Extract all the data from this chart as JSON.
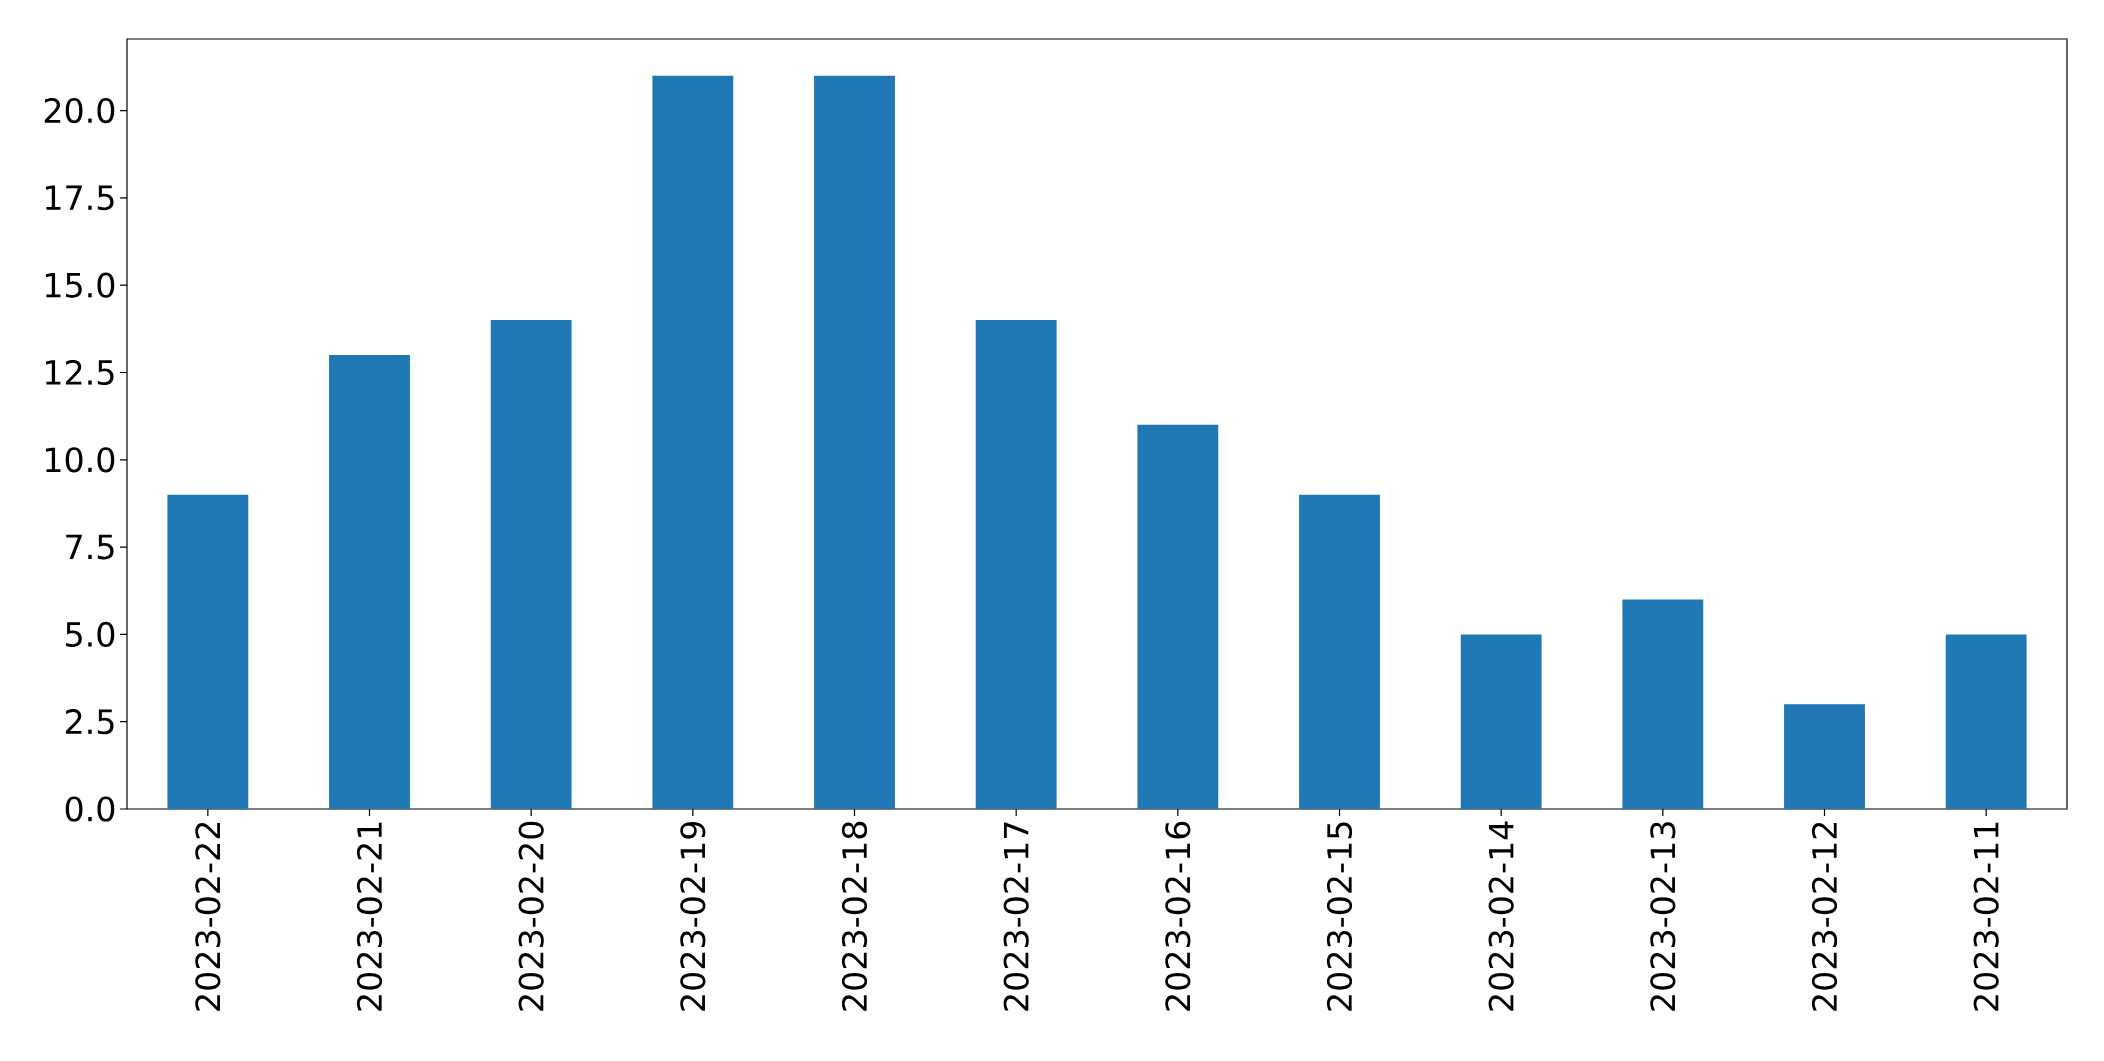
{
  "chart_data": {
    "type": "bar",
    "categories": [
      "2023-02-22",
      "2023-02-21",
      "2023-02-20",
      "2023-02-19",
      "2023-02-18",
      "2023-02-17",
      "2023-02-16",
      "2023-02-15",
      "2023-02-14",
      "2023-02-13",
      "2023-02-12",
      "2023-02-11"
    ],
    "values": [
      9,
      13,
      14,
      21,
      21,
      14,
      11,
      9,
      5,
      6,
      3,
      5
    ],
    "color": "#1f77b4",
    "ylim": [
      0,
      22.05
    ],
    "yticks": [
      {
        "value": 0,
        "label": "0.0"
      },
      {
        "value": 2.5,
        "label": "2.5"
      },
      {
        "value": 5,
        "label": "5.0"
      },
      {
        "value": 7.5,
        "label": "7.5"
      },
      {
        "value": 10,
        "label": "10.0"
      },
      {
        "value": 12.5,
        "label": "12.5"
      },
      {
        "value": 15,
        "label": "15.0"
      },
      {
        "value": 17.5,
        "label": "17.5"
      },
      {
        "value": 20,
        "label": "20.0"
      }
    ]
  }
}
